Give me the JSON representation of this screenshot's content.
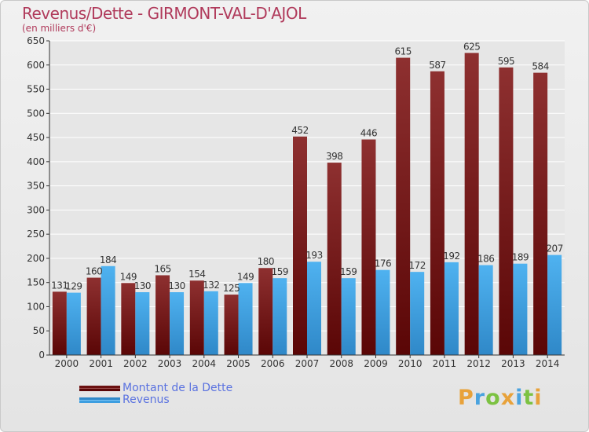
{
  "header": {
    "title": "Revenus/Dette - GIRMONT-VAL-D'AJOL",
    "subtitle": "(en milliers d'€)"
  },
  "chart_data": {
    "type": "bar",
    "title": "Revenus/Dette - GIRMONT-VAL-D'AJOL",
    "ylabel": "(en milliers d'€)",
    "categories": [
      "2000",
      "2001",
      "2002",
      "2003",
      "2004",
      "2005",
      "2006",
      "2007",
      "2008",
      "2009",
      "2010",
      "2011",
      "2012",
      "2013",
      "2014"
    ],
    "series": [
      {
        "name": "Montant de la Dette",
        "color": "#7a1a1a",
        "values": [
          131,
          160,
          149,
          165,
          154,
          125,
          180,
          452,
          398,
          446,
          615,
          587,
          625,
          595,
          584
        ]
      },
      {
        "name": "Revenus",
        "color": "#3d9ee0",
        "values": [
          129,
          184,
          130,
          130,
          132,
          149,
          159,
          193,
          159,
          176,
          172,
          192,
          186,
          189,
          207
        ]
      }
    ],
    "ylim": [
      0,
      650
    ],
    "yticks": [
      0,
      50,
      100,
      150,
      200,
      250,
      300,
      350,
      400,
      450,
      500,
      550,
      600,
      650
    ],
    "grid": true,
    "data_labels": true,
    "legend_position": "bottom-left"
  },
  "legend": {
    "items": [
      {
        "label": "Montant de la Dette",
        "color": "#6b1010"
      },
      {
        "label": "Revenus",
        "color": "#3d9ee0"
      }
    ]
  },
  "logo": {
    "letters": [
      "P",
      "r",
      "o",
      "x",
      "i",
      "t",
      "i"
    ],
    "colors": [
      "#e8a23a",
      "#4aa3df",
      "#7cc242",
      "#e8a23a",
      "#4aa3df",
      "#7cc242",
      "#e8a23a"
    ]
  }
}
